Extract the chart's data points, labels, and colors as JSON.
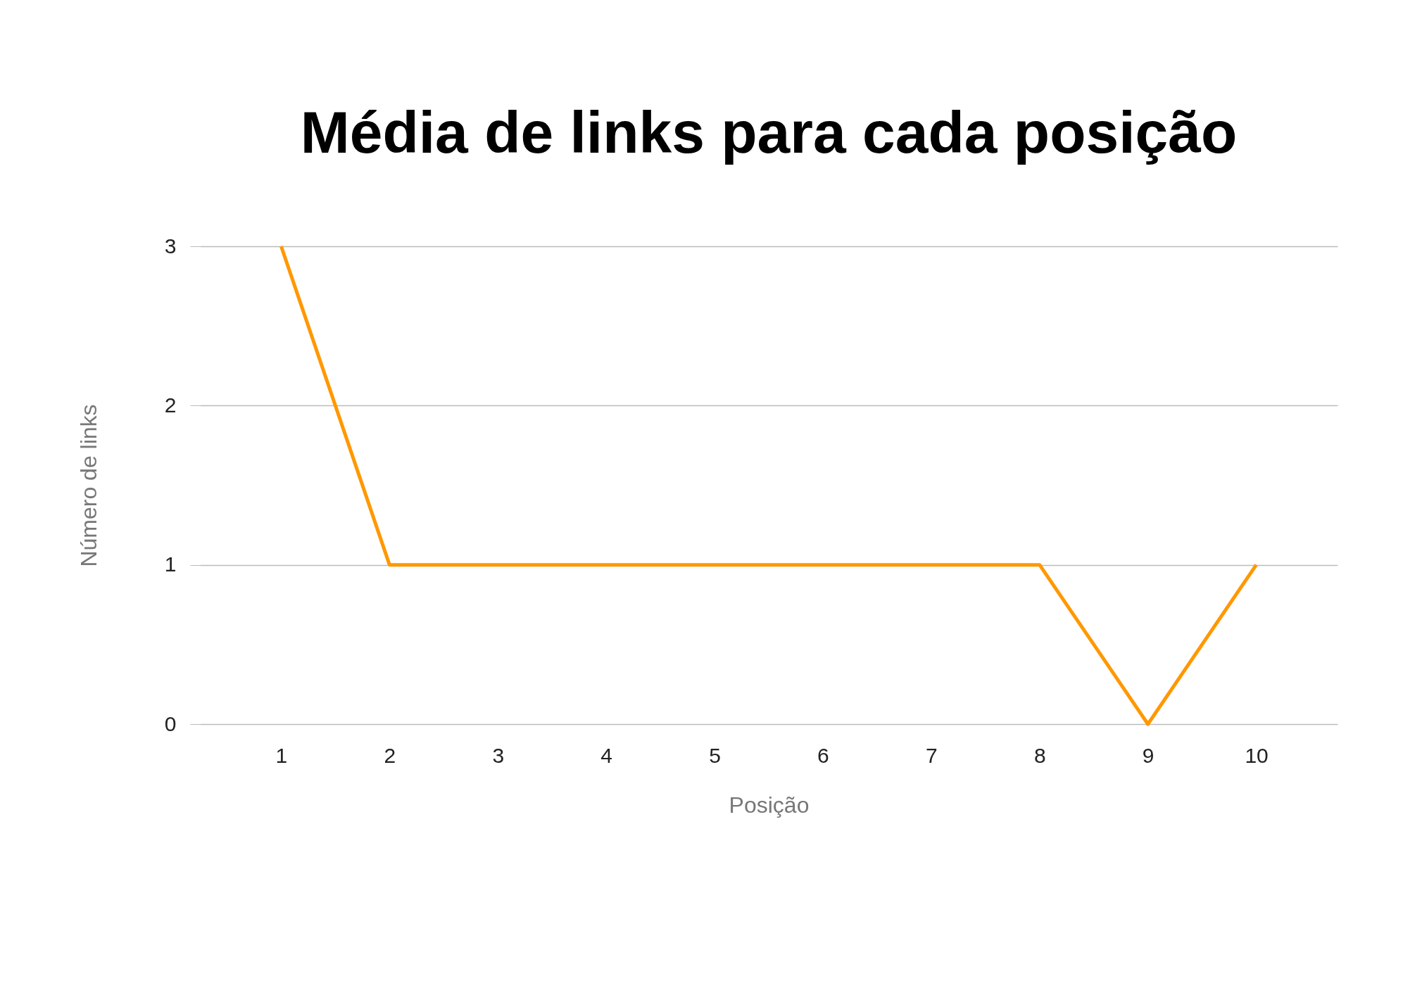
{
  "chart_data": {
    "type": "line",
    "title": "Média de links para cada posição",
    "xlabel": "Posição",
    "ylabel": "Número de links",
    "categories": [
      "1",
      "2",
      "3",
      "4",
      "5",
      "6",
      "7",
      "8",
      "9",
      "10"
    ],
    "series": [
      {
        "color": "#ff9800",
        "values": [
          3,
          1,
          1,
          1,
          1,
          1,
          1,
          1,
          0,
          1
        ]
      }
    ],
    "ylim": [
      0,
      3
    ],
    "yticks": [
      0,
      1,
      2,
      3
    ],
    "grid": "y",
    "marker": "none",
    "line_style": "solid"
  }
}
